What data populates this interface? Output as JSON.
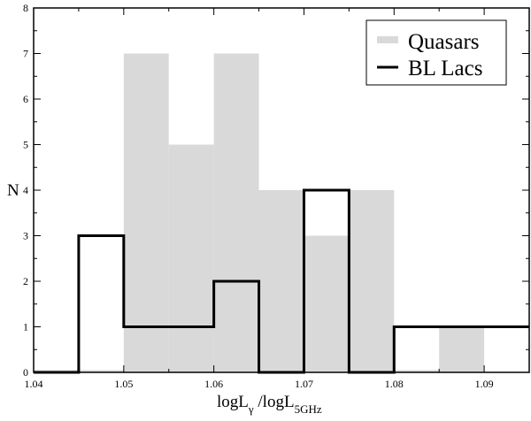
{
  "chart_data": {
    "type": "bar",
    "bin_edges": [
      1.04,
      1.045,
      1.05,
      1.055,
      1.06,
      1.065,
      1.07,
      1.075,
      1.08,
      1.085,
      1.09,
      1.095
    ],
    "series": [
      {
        "name": "Quasars",
        "values": [
          0.05,
          0.05,
          7,
          5,
          7,
          4,
          3,
          4,
          0.05,
          1,
          0
        ],
        "color": "#d9d9d9"
      },
      {
        "name": "BL Lacs",
        "values": [
          0,
          3,
          1,
          1,
          2,
          0,
          4,
          0,
          1,
          1,
          1
        ],
        "color": "#000000"
      }
    ],
    "xlim": [
      1.04,
      1.095
    ],
    "ylim": [
      0,
      8
    ],
    "xticks": [
      "1.04",
      "1.05",
      "1.06",
      "1.07",
      "1.08",
      "1.09"
    ],
    "yticks": [
      "0",
      "1",
      "2",
      "3",
      "4",
      "5",
      "6",
      "7",
      "8"
    ],
    "xlabel": {
      "main": "logL",
      "sub1": "γ",
      "mid": " /logL",
      "sub2": "5GHz"
    },
    "ylabel": "N",
    "legend_position": "top-right"
  }
}
